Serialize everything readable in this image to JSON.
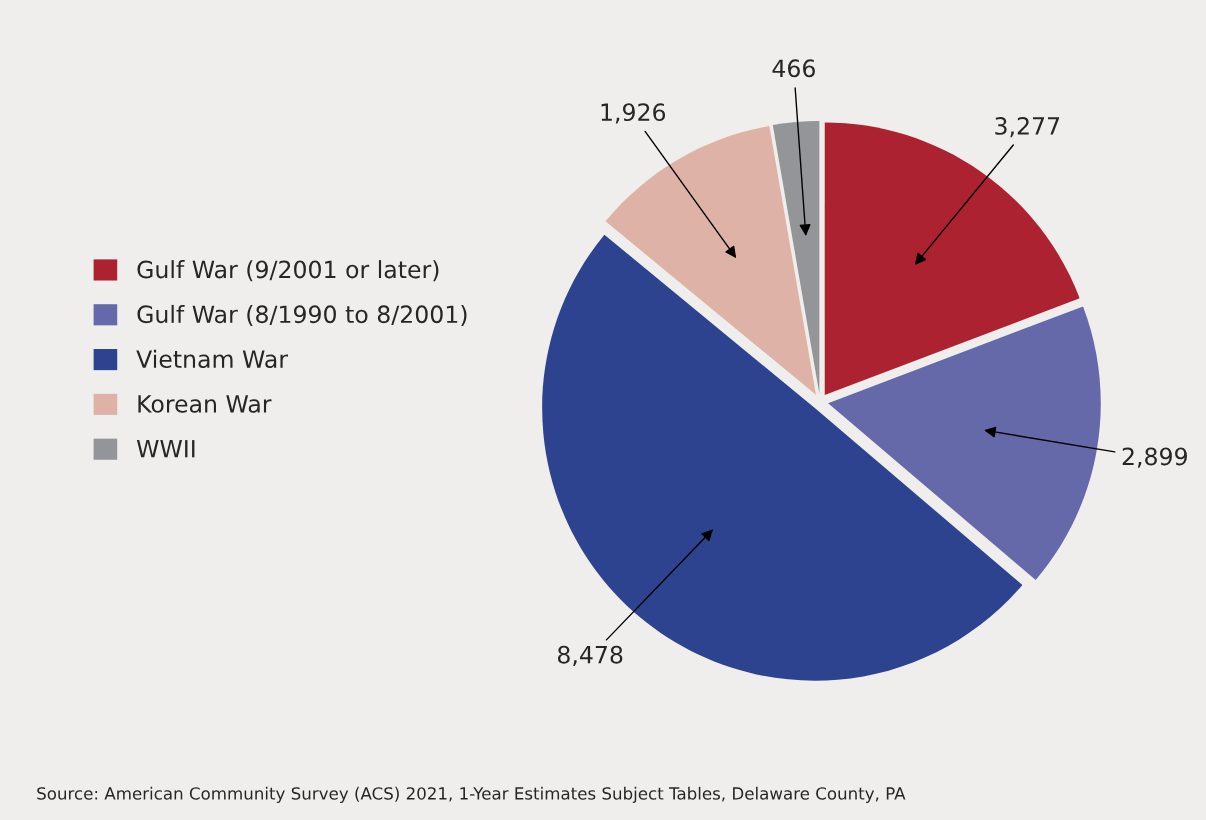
{
  "chart_data": {
    "type": "pie",
    "categories": [
      "Gulf War (9/2001 or later)",
      "Gulf War (8/1990 to 8/2001)",
      "Vietnam War",
      "Korean War",
      "WWII"
    ],
    "values": [
      3277,
      2899,
      8478,
      1926,
      466
    ],
    "value_labels": [
      "3,277",
      "2,899",
      "8,478",
      "1,926",
      "466"
    ],
    "colors": [
      "#ad2230",
      "#6669a9",
      "#2e438f",
      "#dfb2a8",
      "#949599"
    ],
    "legend": "left",
    "annotations": [
      "Source: American Community Survey (ACS) 2021, 1-Year Estimates Subject Tables, Delaware County, PA"
    ]
  }
}
